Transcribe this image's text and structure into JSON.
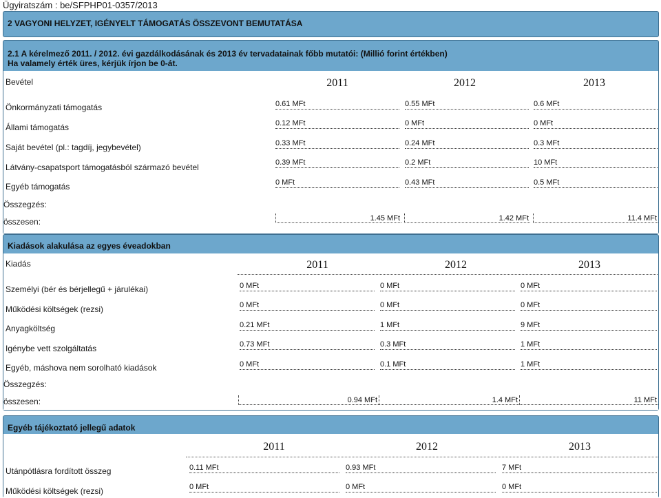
{
  "reference": "Ügyiratszám : be/SFPHP01-0357/2013",
  "section_title": "2 VAGYONI HELYZET, IGÉNYELT TÁMOGATÁS ÖSSZEVONT BEMUTATÁSA",
  "subsection": {
    "line1": "2.1 A kérelmező 2011. / 2012. évi gazdálkodásának és 2013 év tervadatainak főbb mutatói: (Millió forint értékben)",
    "line2": "Ha valamely érték üres, kérjük írjon be 0-át.",
    "revenue_header": "Bevétel",
    "years": [
      "2011",
      "2012",
      "2013"
    ],
    "rows": [
      {
        "label": "Önkormányzati támogatás",
        "values": [
          "0.61 MFt",
          "0.55 MFt",
          "0.6 MFt"
        ]
      },
      {
        "label": "Állami támogatás",
        "values": [
          "0.12 MFt",
          "0 MFt",
          "0 MFt"
        ]
      },
      {
        "label": "Saját bevétel (pl.: tagdíj, jegybevétel)",
        "values": [
          "0.33 MFt",
          "0.24 MFt",
          "0.3 MFt"
        ]
      },
      {
        "label": "Látvány-csapatsport támogatásból származó bevétel",
        "values": [
          "0.39 MFt",
          "0.2 MFt",
          "10 MFt"
        ]
      },
      {
        "label": "Egyéb támogatás",
        "values": [
          "0 MFt",
          "0.43 MFt",
          "0.5 MFt"
        ]
      }
    ],
    "summary_label": "Összegzés:",
    "total_label": "összesen:",
    "totals": [
      "1.45  MFt",
      "1.42  MFt",
      "11.4  MFt"
    ]
  },
  "expenses": {
    "title": "Kiadások alakulása az egyes éveadokban",
    "header": "Kiadás",
    "years": [
      "2011",
      "2012",
      "2013"
    ],
    "rows": [
      {
        "label": "Személyi (bér és bérjellegű + járulékai)",
        "values": [
          "0 MFt",
          "0 MFt",
          "0 MFt"
        ]
      },
      {
        "label": "Működési költségek (rezsi)",
        "values": [
          "0 MFt",
          "0 MFt",
          "0 MFt"
        ]
      },
      {
        "label": "Anyagköltség",
        "values": [
          "0.21 MFt",
          "1 MFt",
          "9 MFt"
        ]
      },
      {
        "label": "Igénybe vett szolgáltatás",
        "values": [
          "0.73 MFt",
          "0.3 MFt",
          "1 MFt"
        ]
      },
      {
        "label": "Egyéb, máshova nem sorolható kiadások",
        "values": [
          "0 MFt",
          "0.1 MFt",
          "1 MFt"
        ]
      }
    ],
    "summary_label": "Összegzés:",
    "total_label": "összesen:",
    "totals": [
      "0.94  MFt",
      "1.4  MFt",
      "11  MFt"
    ]
  },
  "other": {
    "title": "Egyéb tájékoztató jellegű adatok",
    "years": [
      "2011",
      "2012",
      "2013"
    ],
    "rows": [
      {
        "label": "Utánpótlásra fordított összeg",
        "values": [
          "0.11 MFt",
          "0.93 MFt",
          "7 MFt"
        ]
      },
      {
        "label": "Működési költségek (rezsi)",
        "values": [
          "0 MFt",
          "0 MFt",
          "0 MFt"
        ]
      }
    ]
  }
}
